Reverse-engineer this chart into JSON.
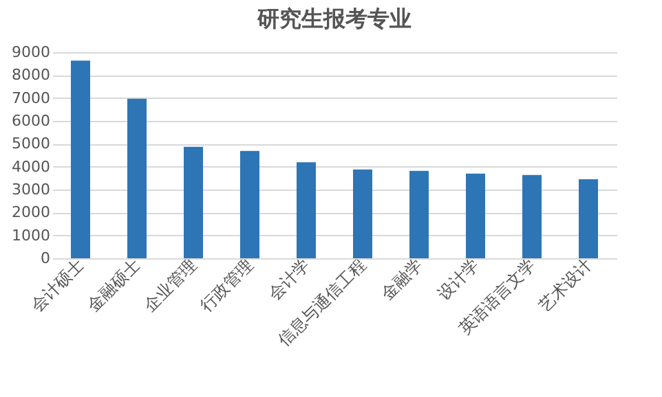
{
  "chart_data": {
    "type": "bar",
    "title": "研究生报考专业",
    "categories": [
      "会计硕士",
      "金融硕士",
      "企业管理",
      "行政管理",
      "会计学",
      "信息与通信工程",
      "金融学",
      "设计学",
      "英语语言文学",
      "艺术设计"
    ],
    "values": [
      8630,
      6970,
      4870,
      4690,
      4190,
      3880,
      3820,
      3700,
      3640,
      3450
    ],
    "color": "#2e75b6",
    "ylim": [
      0,
      9000
    ],
    "yticks": [
      0,
      1000,
      2000,
      3000,
      4000,
      5000,
      6000,
      7000,
      8000,
      9000
    ],
    "grid": "y"
  }
}
